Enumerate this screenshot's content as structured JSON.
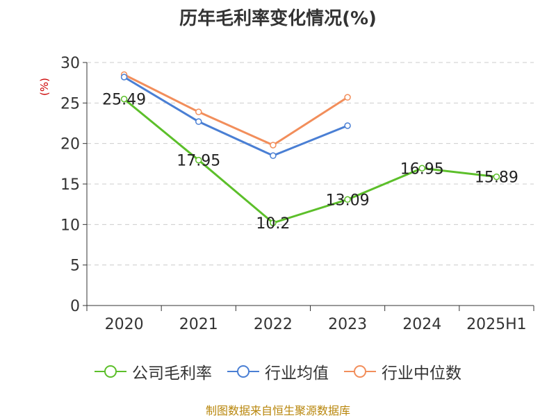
{
  "title": "历年毛利率变化情况(%)",
  "source": "制图数据来自恒生聚源数据库",
  "chart_data": {
    "type": "line",
    "title": "历年毛利率变化情况(%)",
    "ylabel": "(%)",
    "xlabel": "",
    "ylim": [
      0,
      30
    ],
    "yticks": [
      0,
      5,
      10,
      15,
      20,
      25,
      30
    ],
    "grid": true,
    "legend_position": "bottom",
    "categories": [
      "2020",
      "2021",
      "2022",
      "2023",
      "2024",
      "2025H1"
    ],
    "series": [
      {
        "name": "公司毛利率",
        "color": "#5cbf2a",
        "values": [
          25.49,
          17.95,
          10.2,
          13.09,
          16.95,
          15.89
        ],
        "labels": [
          "25.49",
          "17.95",
          "10.2",
          "13.09",
          "16.95",
          "15.89"
        ]
      },
      {
        "name": "行业均值",
        "color": "#4a7fd4",
        "values": [
          28.2,
          22.7,
          18.5,
          22.2,
          null,
          null
        ]
      },
      {
        "name": "行业中位数",
        "color": "#f28e5b",
        "values": [
          28.5,
          23.9,
          19.8,
          25.7,
          null,
          null
        ]
      }
    ]
  }
}
